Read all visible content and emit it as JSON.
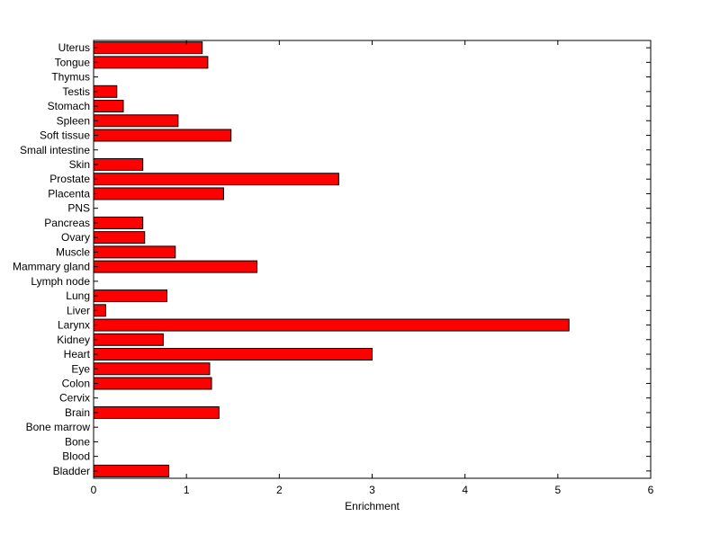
{
  "chart_data": {
    "type": "bar",
    "orientation": "horizontal",
    "title": "",
    "xlabel": "Enrichment",
    "ylabel": "",
    "xlim": [
      0,
      6
    ],
    "xticks": [
      "0",
      "1",
      "2",
      "3",
      "4",
      "5",
      "6"
    ],
    "grid": false,
    "bar_color": "#ff0000",
    "categories": [
      "Uterus",
      "Tongue",
      "Thymus",
      "Testis",
      "Stomach",
      "Spleen",
      "Soft tissue",
      "Small intestine",
      "Skin",
      "Prostate",
      "Placenta",
      "PNS",
      "Pancreas",
      "Ovary",
      "Muscle",
      "Mammary gland",
      "Lymph node",
      "Lung",
      "Liver",
      "Larynx",
      "Kidney",
      "Heart",
      "Eye",
      "Colon",
      "Cervix",
      "Brain",
      "Bone marrow",
      "Bone",
      "Blood",
      "Bladder"
    ],
    "values": [
      1.17,
      1.23,
      0,
      0.25,
      0.32,
      0.91,
      1.48,
      0,
      0.53,
      2.64,
      1.4,
      0,
      0.53,
      0.55,
      0.88,
      1.76,
      0,
      0.79,
      0.13,
      5.12,
      0.75,
      3.0,
      1.25,
      1.27,
      0,
      1.35,
      0,
      0,
      0,
      0.81
    ]
  }
}
